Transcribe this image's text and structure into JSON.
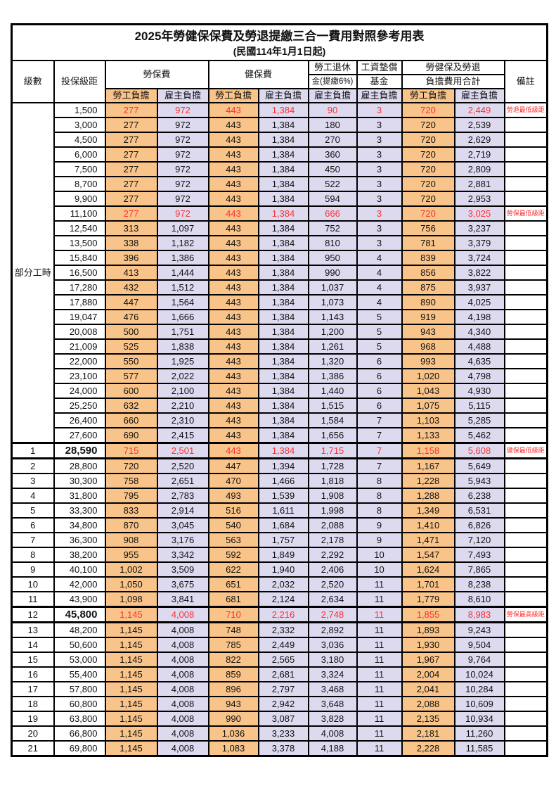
{
  "title": "2025年勞健保保費及勞退提繳三合一費用對照參考用表",
  "subtitle": "(民國114年1月1日起)",
  "columns": {
    "level": "級數",
    "bracket": "投保級距",
    "labor_ins": "勞保費",
    "health_ins": "健保費",
    "pension_line1": "勞工退休",
    "pension_line2": "金(提繳6%)",
    "wage_fund_line1": "工資墊償",
    "wage_fund_line2": "基金",
    "total_line1": "勞健保及勞退",
    "total_line2": "負擔費用合計",
    "remark": "備註",
    "employee": "勞工負擔",
    "employer": "雇主負擔"
  },
  "group_label": "部分工時",
  "group_rowcount": 23,
  "colors": {
    "employee_bg": "#F9C489",
    "employer_bg": "#DDDAF0",
    "highlight_red": "#FF3030",
    "border": "#000000"
  },
  "rows": [
    {
      "level": "",
      "bracket": "1,500",
      "values": [
        "277",
        "972",
        "443",
        "1,384",
        "90",
        "3",
        "720",
        "2,449"
      ],
      "remark": "勞退最低級距",
      "red": true,
      "bold": false
    },
    {
      "level": "",
      "bracket": "3,000",
      "values": [
        "277",
        "972",
        "443",
        "1,384",
        "180",
        "3",
        "720",
        "2,539"
      ],
      "remark": "",
      "red": false,
      "bold": false
    },
    {
      "level": "",
      "bracket": "4,500",
      "values": [
        "277",
        "972",
        "443",
        "1,384",
        "270",
        "3",
        "720",
        "2,629"
      ],
      "remark": "",
      "red": false,
      "bold": false
    },
    {
      "level": "",
      "bracket": "6,000",
      "values": [
        "277",
        "972",
        "443",
        "1,384",
        "360",
        "3",
        "720",
        "2,719"
      ],
      "remark": "",
      "red": false,
      "bold": false
    },
    {
      "level": "",
      "bracket": "7,500",
      "values": [
        "277",
        "972",
        "443",
        "1,384",
        "450",
        "3",
        "720",
        "2,809"
      ],
      "remark": "",
      "red": false,
      "bold": false
    },
    {
      "level": "",
      "bracket": "8,700",
      "values": [
        "277",
        "972",
        "443",
        "1,384",
        "522",
        "3",
        "720",
        "2,881"
      ],
      "remark": "",
      "red": false,
      "bold": false
    },
    {
      "level": "",
      "bracket": "9,900",
      "values": [
        "277",
        "972",
        "443",
        "1,384",
        "594",
        "3",
        "720",
        "2,953"
      ],
      "remark": "",
      "red": false,
      "bold": false
    },
    {
      "level": "",
      "bracket": "11,100",
      "values": [
        "277",
        "972",
        "443",
        "1,384",
        "666",
        "3",
        "720",
        "3,025"
      ],
      "remark": "勞保最低級距",
      "red": true,
      "bold": false
    },
    {
      "level": "",
      "bracket": "12,540",
      "values": [
        "313",
        "1,097",
        "443",
        "1,384",
        "752",
        "3",
        "756",
        "3,237"
      ],
      "remark": "",
      "red": false,
      "bold": false
    },
    {
      "level": "",
      "bracket": "13,500",
      "values": [
        "338",
        "1,182",
        "443",
        "1,384",
        "810",
        "3",
        "781",
        "3,379"
      ],
      "remark": "",
      "red": false,
      "bold": false
    },
    {
      "level": "",
      "bracket": "15,840",
      "values": [
        "396",
        "1,386",
        "443",
        "1,384",
        "950",
        "4",
        "839",
        "3,724"
      ],
      "remark": "",
      "red": false,
      "bold": false
    },
    {
      "level": "",
      "bracket": "16,500",
      "values": [
        "413",
        "1,444",
        "443",
        "1,384",
        "990",
        "4",
        "856",
        "3,822"
      ],
      "remark": "",
      "red": false,
      "bold": false
    },
    {
      "level": "",
      "bracket": "17,280",
      "values": [
        "432",
        "1,512",
        "443",
        "1,384",
        "1,037",
        "4",
        "875",
        "3,937"
      ],
      "remark": "",
      "red": false,
      "bold": false
    },
    {
      "level": "",
      "bracket": "17,880",
      "values": [
        "447",
        "1,564",
        "443",
        "1,384",
        "1,073",
        "4",
        "890",
        "4,025"
      ],
      "remark": "",
      "red": false,
      "bold": false
    },
    {
      "level": "",
      "bracket": "19,047",
      "values": [
        "476",
        "1,666",
        "443",
        "1,384",
        "1,143",
        "5",
        "919",
        "4,198"
      ],
      "remark": "",
      "red": false,
      "bold": false
    },
    {
      "level": "",
      "bracket": "20,008",
      "values": [
        "500",
        "1,751",
        "443",
        "1,384",
        "1,200",
        "5",
        "943",
        "4,340"
      ],
      "remark": "",
      "red": false,
      "bold": false
    },
    {
      "level": "",
      "bracket": "21,009",
      "values": [
        "525",
        "1,838",
        "443",
        "1,384",
        "1,261",
        "5",
        "968",
        "4,488"
      ],
      "remark": "",
      "red": false,
      "bold": false
    },
    {
      "level": "",
      "bracket": "22,000",
      "values": [
        "550",
        "1,925",
        "443",
        "1,384",
        "1,320",
        "6",
        "993",
        "4,635"
      ],
      "remark": "",
      "red": false,
      "bold": false
    },
    {
      "level": "",
      "bracket": "23,100",
      "values": [
        "577",
        "2,022",
        "443",
        "1,384",
        "1,386",
        "6",
        "1,020",
        "4,798"
      ],
      "remark": "",
      "red": false,
      "bold": false
    },
    {
      "level": "",
      "bracket": "24,000",
      "values": [
        "600",
        "2,100",
        "443",
        "1,384",
        "1,440",
        "6",
        "1,043",
        "4,930"
      ],
      "remark": "",
      "red": false,
      "bold": false
    },
    {
      "level": "",
      "bracket": "25,250",
      "values": [
        "632",
        "2,210",
        "443",
        "1,384",
        "1,515",
        "6",
        "1,075",
        "5,115"
      ],
      "remark": "",
      "red": false,
      "bold": false
    },
    {
      "level": "",
      "bracket": "26,400",
      "values": [
        "660",
        "2,310",
        "443",
        "1,384",
        "1,584",
        "7",
        "1,103",
        "5,285"
      ],
      "remark": "",
      "red": false,
      "bold": false
    },
    {
      "level": "",
      "bracket": "27,600",
      "values": [
        "690",
        "2,415",
        "443",
        "1,384",
        "1,656",
        "7",
        "1,133",
        "5,462"
      ],
      "remark": "",
      "red": false,
      "bold": false
    },
    {
      "level": "1",
      "bracket": "28,590",
      "values": [
        "715",
        "2,501",
        "443",
        "1,384",
        "1,715",
        "7",
        "1,158",
        "5,608"
      ],
      "remark": "健保最低級距",
      "red": true,
      "bold": true
    },
    {
      "level": "2",
      "bracket": "28,800",
      "values": [
        "720",
        "2,520",
        "447",
        "1,394",
        "1,728",
        "7",
        "1,167",
        "5,649"
      ],
      "remark": "",
      "red": false,
      "bold": false
    },
    {
      "level": "3",
      "bracket": "30,300",
      "values": [
        "758",
        "2,651",
        "470",
        "1,466",
        "1,818",
        "8",
        "1,228",
        "5,943"
      ],
      "remark": "",
      "red": false,
      "bold": false
    },
    {
      "level": "4",
      "bracket": "31,800",
      "values": [
        "795",
        "2,783",
        "493",
        "1,539",
        "1,908",
        "8",
        "1,288",
        "6,238"
      ],
      "remark": "",
      "red": false,
      "bold": false
    },
    {
      "level": "5",
      "bracket": "33,300",
      "values": [
        "833",
        "2,914",
        "516",
        "1,611",
        "1,998",
        "8",
        "1,349",
        "6,531"
      ],
      "remark": "",
      "red": false,
      "bold": false
    },
    {
      "level": "6",
      "bracket": "34,800",
      "values": [
        "870",
        "3,045",
        "540",
        "1,684",
        "2,088",
        "9",
        "1,410",
        "6,826"
      ],
      "remark": "",
      "red": false,
      "bold": false
    },
    {
      "level": "7",
      "bracket": "36,300",
      "values": [
        "908",
        "3,176",
        "563",
        "1,757",
        "2,178",
        "9",
        "1,471",
        "7,120"
      ],
      "remark": "",
      "red": false,
      "bold": false
    },
    {
      "level": "8",
      "bracket": "38,200",
      "values": [
        "955",
        "3,342",
        "592",
        "1,849",
        "2,292",
        "10",
        "1,547",
        "7,493"
      ],
      "remark": "",
      "red": false,
      "bold": false
    },
    {
      "level": "9",
      "bracket": "40,100",
      "values": [
        "1,002",
        "3,509",
        "622",
        "1,940",
        "2,406",
        "10",
        "1,624",
        "7,865"
      ],
      "remark": "",
      "red": false,
      "bold": false
    },
    {
      "level": "10",
      "bracket": "42,000",
      "values": [
        "1,050",
        "3,675",
        "651",
        "2,032",
        "2,520",
        "11",
        "1,701",
        "8,238"
      ],
      "remark": "",
      "red": false,
      "bold": false
    },
    {
      "level": "11",
      "bracket": "43,900",
      "values": [
        "1,098",
        "3,841",
        "681",
        "2,124",
        "2,634",
        "11",
        "1,779",
        "8,610"
      ],
      "remark": "",
      "red": false,
      "bold": false
    },
    {
      "level": "12",
      "bracket": "45,800",
      "values": [
        "1,145",
        "4,008",
        "710",
        "2,216",
        "2,748",
        "11",
        "1,855",
        "8,983"
      ],
      "remark": "勞保最高級距",
      "red": true,
      "bold": true
    },
    {
      "level": "13",
      "bracket": "48,200",
      "values": [
        "1,145",
        "4,008",
        "748",
        "2,332",
        "2,892",
        "11",
        "1,893",
        "9,243"
      ],
      "remark": "",
      "red": false,
      "bold": false
    },
    {
      "level": "14",
      "bracket": "50,600",
      "values": [
        "1,145",
        "4,008",
        "785",
        "2,449",
        "3,036",
        "11",
        "1,930",
        "9,504"
      ],
      "remark": "",
      "red": false,
      "bold": false
    },
    {
      "level": "15",
      "bracket": "53,000",
      "values": [
        "1,145",
        "4,008",
        "822",
        "2,565",
        "3,180",
        "11",
        "1,967",
        "9,764"
      ],
      "remark": "",
      "red": false,
      "bold": false
    },
    {
      "level": "16",
      "bracket": "55,400",
      "values": [
        "1,145",
        "4,008",
        "859",
        "2,681",
        "3,324",
        "11",
        "2,004",
        "10,024"
      ],
      "remark": "",
      "red": false,
      "bold": false
    },
    {
      "level": "17",
      "bracket": "57,800",
      "values": [
        "1,145",
        "4,008",
        "896",
        "2,797",
        "3,468",
        "11",
        "2,041",
        "10,284"
      ],
      "remark": "",
      "red": false,
      "bold": false
    },
    {
      "level": "18",
      "bracket": "60,800",
      "values": [
        "1,145",
        "4,008",
        "943",
        "2,942",
        "3,648",
        "11",
        "2,088",
        "10,609"
      ],
      "remark": "",
      "red": false,
      "bold": false
    },
    {
      "level": "19",
      "bracket": "63,800",
      "values": [
        "1,145",
        "4,008",
        "990",
        "3,087",
        "3,828",
        "11",
        "2,135",
        "10,934"
      ],
      "remark": "",
      "red": false,
      "bold": false
    },
    {
      "level": "20",
      "bracket": "66,800",
      "values": [
        "1,145",
        "4,008",
        "1,036",
        "3,233",
        "4,008",
        "11",
        "2,181",
        "11,260"
      ],
      "remark": "",
      "red": false,
      "bold": false
    },
    {
      "level": "21",
      "bracket": "69,800",
      "values": [
        "1,145",
        "4,008",
        "1,083",
        "3,378",
        "4,188",
        "11",
        "2,228",
        "11,585"
      ],
      "remark": "",
      "red": false,
      "bold": false
    }
  ]
}
